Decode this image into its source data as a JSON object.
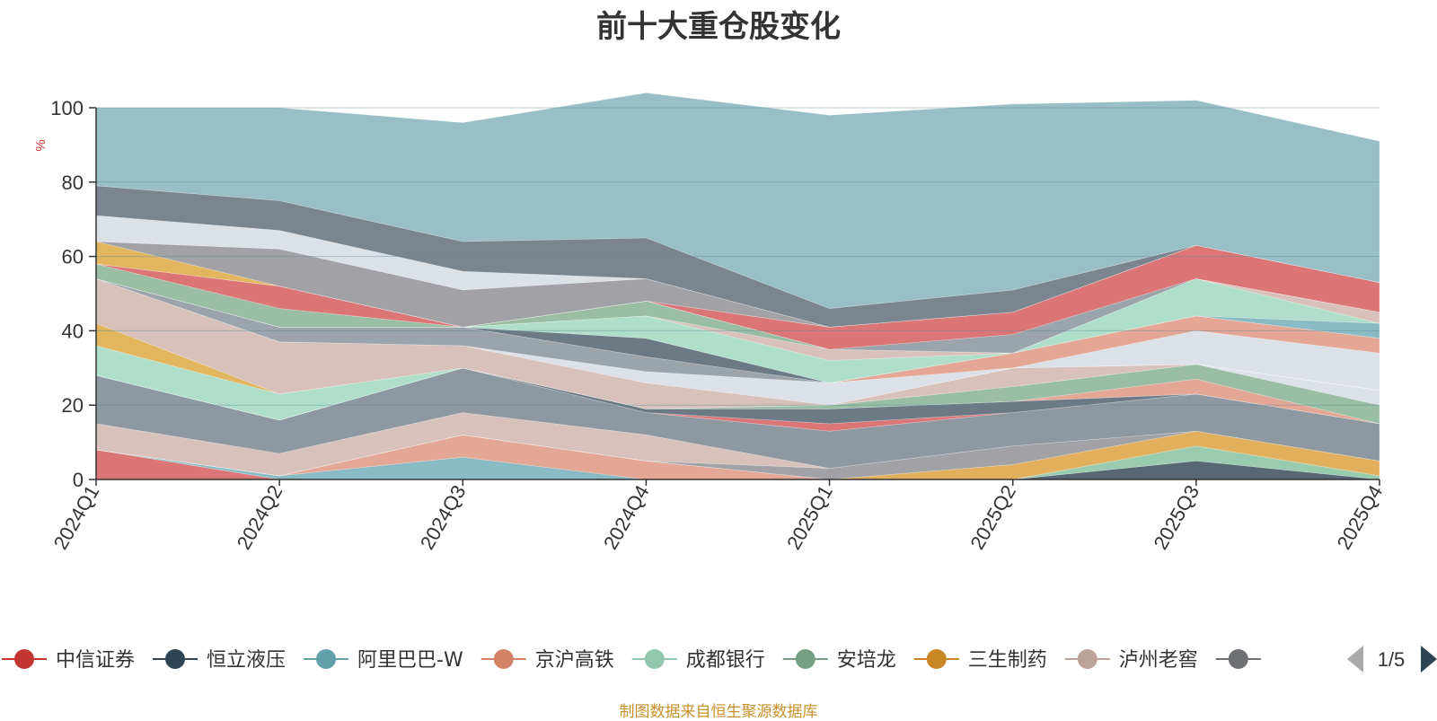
{
  "chart_data": {
    "type": "area",
    "title": "前十大重仓股变化",
    "ylabel": "%",
    "xlabel": "",
    "ylim": [
      0,
      100
    ],
    "yticks": [
      0,
      20,
      40,
      60,
      80,
      100
    ],
    "grid": true,
    "stacked": true,
    "legend_position": "bottom",
    "categories": [
      "2024Q1",
      "2024Q2",
      "2024Q3",
      "2024Q4",
      "2025Q1",
      "2025Q2",
      "2025Q3",
      "2025Q4"
    ],
    "layers": [
      {
        "color": "#d9696a",
        "values": [
          8,
          0,
          0,
          0,
          0,
          0,
          0,
          0
        ]
      },
      {
        "color": "#7fb5bf",
        "values": [
          0,
          1,
          6,
          0,
          0,
          0,
          0,
          0
        ]
      },
      {
        "color": "#e3a08c",
        "values": [
          0,
          0,
          6,
          5,
          0,
          0,
          0,
          0
        ]
      },
      {
        "color": "#a8dcc6",
        "values": [
          0,
          0,
          0,
          0,
          0,
          0,
          0,
          0
        ]
      },
      {
        "color": "#4a5a68",
        "values": [
          0,
          0,
          0,
          0,
          0,
          0,
          5,
          0
        ]
      },
      {
        "color": "#90c8a8",
        "values": [
          0,
          0,
          0,
          0,
          0,
          0,
          4,
          1
        ]
      },
      {
        "color": "#e0a84e",
        "values": [
          0,
          0,
          0,
          0,
          0,
          4,
          4,
          4
        ]
      },
      {
        "color": "#9a9a9e",
        "values": [
          0,
          0,
          0,
          0,
          3,
          5,
          0,
          0
        ]
      },
      {
        "color": "#d6bcb5",
        "values": [
          7,
          6,
          6,
          7,
          0,
          0,
          0,
          0
        ]
      },
      {
        "color": "#838f98",
        "values": [
          13,
          9,
          12,
          6,
          10,
          9,
          10,
          10
        ]
      },
      {
        "color": "#d9696a",
        "values": [
          0,
          0,
          0,
          0,
          2,
          0,
          0,
          0
        ]
      },
      {
        "color": "#5f6f7c",
        "values": [
          0,
          0,
          0,
          1,
          4,
          3,
          0,
          0
        ]
      },
      {
        "color": "#e3a08c",
        "values": [
          0,
          0,
          0,
          0,
          0,
          0,
          4,
          0
        ]
      },
      {
        "color": "#90b89c",
        "values": [
          0,
          0,
          0,
          0,
          1,
          4,
          4,
          5
        ]
      },
      {
        "color": "#d9dde5",
        "values": [
          0,
          0,
          0,
          0,
          0,
          0,
          0,
          4
        ]
      },
      {
        "color": "#d6bcb5",
        "values": [
          0,
          0,
          0,
          0,
          0,
          5,
          0,
          0
        ]
      },
      {
        "color": "#a8dcc6",
        "values": [
          8,
          7,
          0,
          0,
          0,
          0,
          0,
          0
        ]
      },
      {
        "color": "#e0b050",
        "values": [
          6,
          0,
          0,
          0,
          0,
          0,
          0,
          0
        ]
      },
      {
        "color": "#d6bcb5",
        "values": [
          12,
          14,
          6,
          7,
          0,
          0,
          0,
          0
        ]
      },
      {
        "color": "#d9dde5",
        "values": [
          0,
          0,
          0,
          3,
          6,
          0,
          9,
          10
        ]
      },
      {
        "color": "#e3a08c",
        "values": [
          0,
          0,
          0,
          0,
          0,
          4,
          4,
          4
        ]
      },
      {
        "color": "#949ca4",
        "values": [
          0,
          4,
          5,
          4,
          0,
          0,
          0,
          0
        ]
      },
      {
        "color": "#5f6f7c",
        "values": [
          0,
          0,
          0,
          5,
          0,
          0,
          0,
          0
        ]
      },
      {
        "color": "#7fb5bf",
        "values": [
          0,
          0,
          0,
          0,
          0,
          0,
          0,
          4
        ]
      },
      {
        "color": "#a8dcc6",
        "values": [
          0,
          0,
          0,
          6,
          6,
          0,
          10,
          0
        ]
      },
      {
        "color": "#d6bcb5",
        "values": [
          0,
          0,
          0,
          0,
          3,
          0,
          0,
          3
        ]
      },
      {
        "color": "#90b89c",
        "values": [
          4,
          5,
          0,
          4,
          0,
          0,
          0,
          0
        ]
      },
      {
        "color": "#d9696a",
        "values": [
          0,
          6,
          0,
          0,
          0,
          0,
          0,
          0
        ]
      },
      {
        "color": "#949ca4",
        "values": [
          0,
          0,
          0,
          0,
          0,
          5,
          0,
          0
        ]
      },
      {
        "color": "#d9696a",
        "values": [
          0,
          0,
          0,
          0,
          6,
          6,
          9,
          8
        ]
      },
      {
        "color": "#e0b050",
        "values": [
          6,
          0,
          0,
          0,
          0,
          0,
          0,
          0
        ]
      },
      {
        "color": "#9a9a9e",
        "values": [
          0,
          10,
          10,
          6,
          0,
          0,
          0,
          0
        ]
      },
      {
        "color": "#d9dde5",
        "values": [
          7,
          5,
          5,
          0,
          0,
          0,
          0,
          0
        ]
      },
      {
        "color": "#6f7b86",
        "values": [
          8,
          8,
          8,
          11,
          5,
          6,
          0,
          0
        ]
      },
      {
        "color": "#90bac1",
        "values": [
          21,
          25,
          32,
          39,
          52,
          50,
          39,
          38
        ]
      }
    ],
    "series": [
      {
        "name": "中信证券",
        "color": "#c23531"
      },
      {
        "name": "恒立液压",
        "color": "#2f4554"
      },
      {
        "name": "阿里巴巴-W",
        "color": "#61a0a8"
      },
      {
        "name": "京沪高铁",
        "color": "#d48265"
      },
      {
        "name": "成都银行",
        "color": "#91c7ae"
      },
      {
        "name": "安培龙",
        "color": "#749f83"
      },
      {
        "name": "三生制药",
        "color": "#ca8622"
      },
      {
        "name": "泸州老窖",
        "color": "#bda29a"
      },
      {
        "name": "",
        "color": "#6e7074"
      }
    ]
  },
  "legend": {
    "page_indicator": "1/5"
  },
  "source_text": "制图数据来自恒生聚源数据库"
}
